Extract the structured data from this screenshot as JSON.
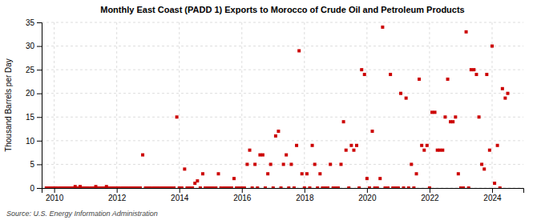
{
  "chart_data": {
    "type": "scatter",
    "title": "Monthly East Coast (PADD 1) Exports to Morocco of Crude Oil and Petroleum Products",
    "ylabel": "Thousand Barrels per Day",
    "annotations": [
      "Source: U.S. Energy Information Administration"
    ],
    "color": "#cc0000",
    "marker": "square",
    "grid": true,
    "xlim": [
      2009.6,
      2025.0
    ],
    "xticks": [
      2010,
      2012,
      2014,
      2016,
      2018,
      2020,
      2022,
      2024
    ],
    "ylim": [
      0,
      35
    ],
    "yticks": [
      0,
      5,
      10,
      15,
      20,
      25,
      30,
      35
    ],
    "x": [
      2009.75,
      2009.83,
      2009.92,
      2010.0,
      2010.08,
      2010.17,
      2010.25,
      2010.33,
      2010.42,
      2010.5,
      2010.58,
      2010.67,
      2010.75,
      2010.83,
      2010.92,
      2011.0,
      2011.08,
      2011.17,
      2011.25,
      2011.33,
      2011.42,
      2011.5,
      2011.58,
      2011.67,
      2011.75,
      2011.83,
      2011.92,
      2012.0,
      2012.08,
      2012.17,
      2012.25,
      2012.33,
      2012.42,
      2012.5,
      2012.58,
      2012.67,
      2012.75,
      2012.83,
      2012.92,
      2013.0,
      2013.08,
      2013.17,
      2013.25,
      2013.33,
      2013.42,
      2013.5,
      2013.58,
      2013.67,
      2013.75,
      2013.83,
      2013.92,
      2014.0,
      2014.08,
      2014.17,
      2014.25,
      2014.33,
      2014.42,
      2014.5,
      2014.58,
      2014.67,
      2014.75,
      2014.83,
      2014.92,
      2015.0,
      2015.08,
      2015.17,
      2015.25,
      2015.33,
      2015.42,
      2015.5,
      2015.58,
      2015.67,
      2015.75,
      2015.83,
      2015.92,
      2016.0,
      2016.08,
      2016.17,
      2016.25,
      2016.33,
      2016.42,
      2016.5,
      2016.58,
      2016.67,
      2016.75,
      2016.83,
      2016.92,
      2017.0,
      2017.08,
      2017.17,
      2017.25,
      2017.33,
      2017.42,
      2017.5,
      2017.58,
      2017.67,
      2017.75,
      2017.83,
      2017.92,
      2018.0,
      2018.08,
      2018.17,
      2018.25,
      2018.33,
      2018.42,
      2018.5,
      2018.58,
      2018.67,
      2018.75,
      2018.83,
      2018.92,
      2019.0,
      2019.08,
      2019.17,
      2019.25,
      2019.33,
      2019.42,
      2019.5,
      2019.58,
      2019.67,
      2019.75,
      2019.83,
      2019.92,
      2020.0,
      2020.08,
      2020.17,
      2020.25,
      2020.33,
      2020.42,
      2020.5,
      2020.58,
      2020.67,
      2020.75,
      2020.83,
      2020.92,
      2021.0,
      2021.08,
      2021.17,
      2021.25,
      2021.33,
      2021.42,
      2021.5,
      2021.58,
      2021.67,
      2021.75,
      2021.83,
      2021.92,
      2022.0,
      2022.08,
      2022.17,
      2022.25,
      2022.33,
      2022.42,
      2022.5,
      2022.58,
      2022.67,
      2022.75,
      2022.83,
      2022.92,
      2023.0,
      2023.08,
      2023.17,
      2023.25,
      2023.33,
      2023.42,
      2023.5,
      2023.58,
      2023.67,
      2023.75,
      2023.83,
      2023.92,
      2024.0,
      2024.08,
      2024.17,
      2024.25,
      2024.33,
      2024.42,
      2024.5
    ],
    "values": [
      0,
      0,
      0,
      0,
      0,
      0,
      0,
      0,
      0,
      0,
      0,
      0.3,
      0,
      0.3,
      0,
      0,
      0,
      0,
      0,
      0.3,
      0,
      0,
      0,
      0.3,
      0,
      0,
      0,
      0,
      0,
      0,
      0,
      0,
      0,
      0,
      0,
      0,
      0,
      7,
      0,
      0,
      0,
      0,
      0,
      0,
      0,
      0,
      0,
      0,
      0,
      0,
      15,
      0,
      0,
      4,
      0,
      0,
      0,
      1,
      1.5,
      0,
      3,
      0,
      0,
      0,
      0,
      0,
      3,
      0,
      0,
      0,
      0,
      0,
      2,
      0,
      0,
      0,
      0,
      5,
      8,
      0,
      5,
      0,
      7,
      7,
      0,
      3,
      5,
      0,
      11,
      12,
      0,
      5,
      7,
      0,
      5,
      0,
      9,
      29,
      3,
      0,
      3,
      0,
      9,
      5,
      0,
      3,
      0,
      0,
      0,
      5,
      0,
      0,
      0,
      5,
      14,
      8,
      0,
      9,
      8,
      9,
      0,
      25,
      24,
      2,
      0,
      12,
      0,
      0,
      2,
      34,
      0,
      0,
      24,
      0,
      0,
      0,
      20,
      0,
      19,
      0,
      5,
      0,
      3,
      23,
      9,
      8,
      9,
      0,
      16,
      16,
      8,
      8,
      8,
      15,
      23,
      14,
      14,
      15,
      3,
      0,
      0,
      33,
      0,
      25,
      25,
      24,
      15,
      5,
      4,
      24,
      8,
      30,
      1,
      9,
      0,
      21,
      19,
      20
    ]
  }
}
